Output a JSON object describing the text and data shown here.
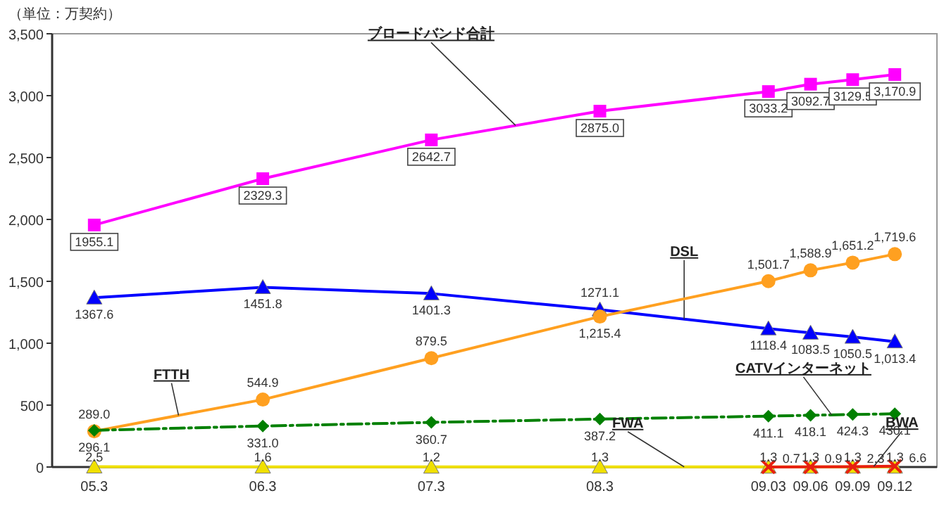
{
  "chart_data": {
    "type": "line",
    "ylabel": "（単位：万契約）",
    "x": [
      "2005-03",
      "2006-03",
      "2007-03",
      "2008-03",
      "2009-03",
      "2009-06",
      "2009-09",
      "2009-12"
    ],
    "xlim": [
      "2004-12",
      "2010-03"
    ],
    "xticks": [
      {
        "value": "2005-03",
        "label": "05.3"
      },
      {
        "value": "2006-03",
        "label": "06.3"
      },
      {
        "value": "2007-03",
        "label": "07.3"
      },
      {
        "value": "2008-03",
        "label": "08.3"
      },
      {
        "value": "2009-03",
        "label": "09.03"
      },
      {
        "value": "2009-06",
        "label": "09.06"
      },
      {
        "value": "2009-09",
        "label": "09.09"
      },
      {
        "value": "2009-12",
        "label": "09.12"
      }
    ],
    "ylim": [
      0,
      3500
    ],
    "yticks": [
      {
        "value": 0,
        "label": "0"
      },
      {
        "value": 500,
        "label": "500"
      },
      {
        "value": 1000,
        "label": "1,000"
      },
      {
        "value": 1500,
        "label": "1,500"
      },
      {
        "value": 2000,
        "label": "2,000"
      },
      {
        "value": 2500,
        "label": "2,500"
      },
      {
        "value": 3000,
        "label": "3,000"
      },
      {
        "value": 3500,
        "label": "3,500"
      }
    ],
    "grid": false,
    "series": [
      {
        "name": "ブロードバンド合計",
        "color": "#ff00ff",
        "marker": "square",
        "line_style": "solid",
        "values": [
          1955.1,
          2329.3,
          2642.7,
          2875.0,
          3033.2,
          3092.7,
          3129.5,
          3170.9
        ],
        "value_labels": [
          "1955.1",
          "2329.3",
          "2642.7",
          "2875.0",
          "3033.2",
          "3092.7",
          "3129.5",
          "3,170.9"
        ]
      },
      {
        "name": "DSL",
        "color": "#0000ff",
        "marker": "triangle",
        "line_style": "solid",
        "values": [
          1367.6,
          1451.8,
          1401.3,
          1271.1,
          1118.4,
          1083.5,
          1050.5,
          1013.4
        ],
        "value_labels": [
          "1367.6",
          "1451.8",
          "1401.3",
          "1271.1",
          "1118.4",
          "1083.5",
          "1050.5",
          "1,013.4"
        ]
      },
      {
        "name": "FTTH",
        "color": "#ffa020",
        "marker": "circle",
        "line_style": "solid",
        "values": [
          289.0,
          544.9,
          879.5,
          1215.4,
          1501.7,
          1588.9,
          1651.2,
          1719.6
        ],
        "value_labels": [
          "289.0",
          "544.9",
          "879.5",
          "1,215.4",
          "1,501.7",
          "1,588.9",
          "1,651.2",
          "1,719.6"
        ]
      },
      {
        "name": "CATVインターネット",
        "color": "#008000",
        "marker": "diamond",
        "line_style": "dashed",
        "values": [
          296.1,
          331.0,
          360.7,
          387.2,
          411.1,
          418.1,
          424.3,
          430.1
        ],
        "value_labels": [
          "296.1",
          "331.0",
          "360.7",
          "387.2",
          "411.1",
          "418.1",
          "424.3",
          "430.1"
        ]
      },
      {
        "name": "FWA",
        "color": "#f0e000",
        "marker": "triangle",
        "line_style": "solid",
        "values": [
          2.5,
          1.6,
          1.2,
          1.3,
          1.3,
          1.3,
          1.3,
          1.3
        ],
        "value_labels": [
          "2.5",
          "1.6",
          "1.2",
          "1.3",
          "1.3",
          "1.3",
          "1.3",
          "1.3"
        ]
      },
      {
        "name": "BWA",
        "color": "#e82010",
        "marker": "cross",
        "line_style": "solid",
        "values": [
          null,
          null,
          null,
          null,
          0.7,
          0.9,
          2.3,
          6.6
        ],
        "value_labels": [
          null,
          null,
          null,
          null,
          "0.7",
          "0.9",
          "2.3",
          "6.6"
        ]
      }
    ]
  }
}
